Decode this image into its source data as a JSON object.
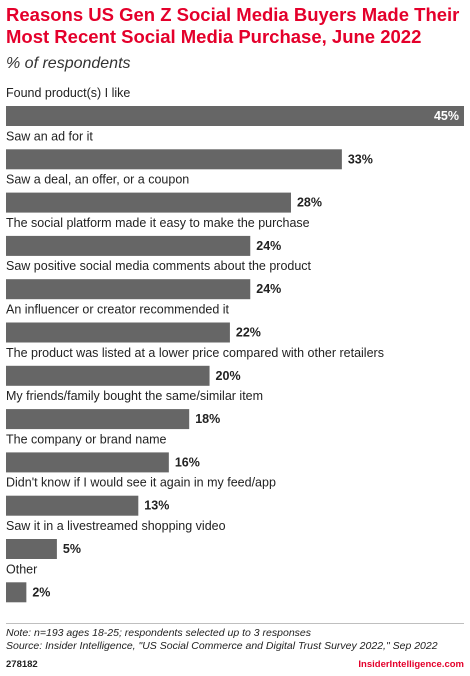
{
  "header": {
    "title": "Reasons US Gen Z Social Media Buyers Made Their Most Recent Social Media Purchase, June 2022",
    "subtitle": "% of respondents"
  },
  "chart_data": {
    "type": "bar",
    "orientation": "horizontal",
    "categories": [
      "Found product(s) I like",
      "Saw an ad for it",
      "Saw a deal, an offer, or a coupon",
      "The social platform made it easy to make the purchase",
      "Saw positive social media comments about the product",
      "An influencer or creator recommended it",
      "The product was listed at a lower price compared with other retailers",
      "My friends/family bought the same/similar item",
      "The company or brand name",
      "Didn't know if I would see it again in my feed/app",
      "Saw it in a livestreamed shopping video",
      "Other"
    ],
    "values": [
      45,
      33,
      28,
      24,
      24,
      22,
      20,
      18,
      16,
      13,
      5,
      2
    ],
    "value_labels": [
      "45%",
      "33%",
      "28%",
      "24%",
      "24%",
      "22%",
      "20%",
      "18%",
      "16%",
      "13%",
      "5%",
      "2%"
    ],
    "xlim": [
      0,
      45
    ],
    "bar_color": "#666666",
    "grid": false
  },
  "footer": {
    "note": "Note: n=193 ages 18-25; respondents selected up to 3 responses",
    "source": "Source: Insider Intelligence, \"US Social Commerce and Digital Trust Survey 2022,\" Sep 2022",
    "chart_id": "278182",
    "brand": "InsiderIntelligence.com"
  },
  "colors": {
    "title": "#e4002b",
    "bar": "#666666",
    "brand": "#e4002b"
  }
}
